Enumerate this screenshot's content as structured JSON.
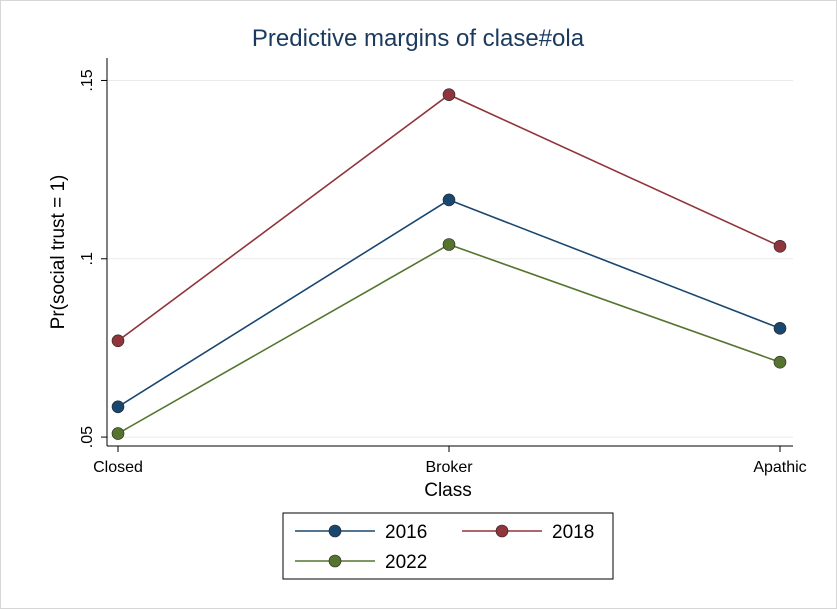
{
  "chart_data": {
    "type": "line",
    "title": "Predictive margins of clase#ola",
    "xlabel": "Class",
    "ylabel": "Pr(social trust = 1)",
    "categories": [
      "Closed",
      "Broker",
      "Apathic"
    ],
    "yticks": [
      {
        "value": 0.05,
        "label": ".05"
      },
      {
        "value": 0.1,
        "label": ".1"
      },
      {
        "value": 0.15,
        "label": ".15"
      }
    ],
    "ylim": [
      0.0475,
      0.1563
    ],
    "grid": true,
    "legend": "bottom",
    "series": [
      {
        "name": "2016",
        "color": "#1a476f",
        "values": [
          0.0585,
          0.1165,
          0.0805
        ]
      },
      {
        "name": "2018",
        "color": "#90353b",
        "values": [
          0.077,
          0.146,
          0.1035
        ]
      },
      {
        "name": "2022",
        "color": "#55752f",
        "values": [
          0.051,
          0.104,
          0.071
        ]
      }
    ]
  }
}
